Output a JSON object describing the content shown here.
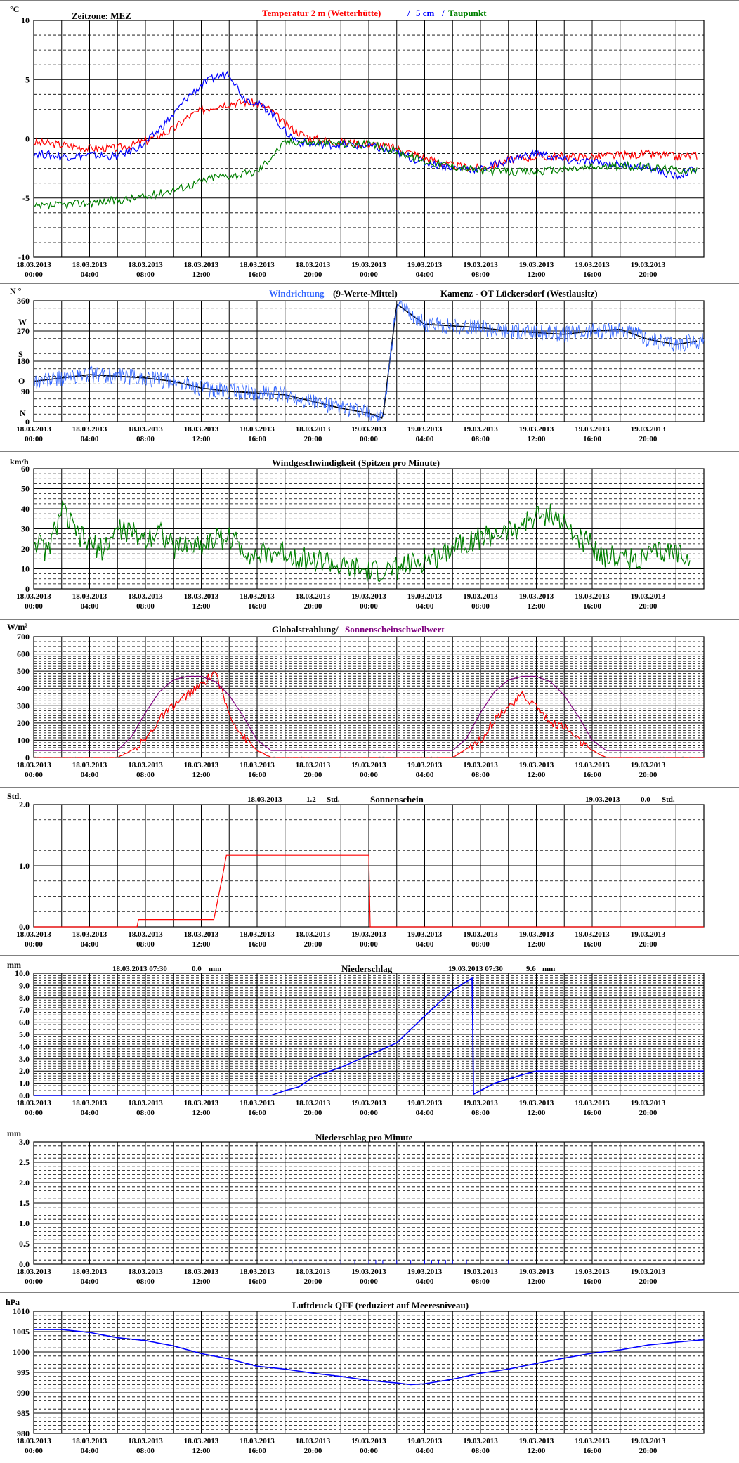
{
  "x_labels": [
    [
      "18.03.2013",
      "00:00"
    ],
    [
      "18.03.2013",
      "04:00"
    ],
    [
      "18.03.2013",
      "08:00"
    ],
    [
      "18.03.2013",
      "12:00"
    ],
    [
      "18.03.2013",
      "16:00"
    ],
    [
      "18.03.2013",
      "20:00"
    ],
    [
      "19.03.2013",
      "00:00"
    ],
    [
      "19.03.2013",
      "04:00"
    ],
    [
      "19.03.2013",
      "08:00"
    ],
    [
      "19.03.2013",
      "12:00"
    ],
    [
      "19.03.2013",
      "16:00"
    ],
    [
      "19.03.2013",
      "20:00"
    ]
  ],
  "colors": {
    "red": "#ff0000",
    "blue": "#0000ff",
    "green": "#008000",
    "purple": "#800080",
    "black": "#000000",
    "grid": "#000000"
  },
  "temperature": {
    "unit": "°C",
    "zone": "Zeitzone: MEZ",
    "title_red": "Temperatur 2 m (Wetterhütte)",
    "sep1": "/",
    "title_blue": "5 cm",
    "sep2": "/",
    "title_green": "Taupunkt"
  },
  "wind_dir": {
    "unit": "N °",
    "title_blue": "Windrichtung",
    "title_black": "(9-Werte-Mittel)",
    "station": "Kamenz - OT Lückersdorf (Westlausitz)",
    "compass": [
      "N",
      "W",
      "S",
      "O",
      "N"
    ]
  },
  "wind_speed": {
    "unit": "km/h",
    "title": "Windgeschwindigkeit (Spitzen pro Minute)"
  },
  "radiation": {
    "unit": "W/m²",
    "title_black": "Globalstrahlung/",
    "title_purple": "Sonnenscheinschwellwert"
  },
  "sunshine": {
    "unit": "Std.",
    "day1": "18.03.2013",
    "day1_val": "1.2",
    "day1_unit": "Std.",
    "title": "Sonnenschein",
    "day2": "19.03.2013",
    "day2_val": "0.0",
    "day2_unit": "Std."
  },
  "precip": {
    "unit": "mm",
    "left_time": "18.03.2013 07:30",
    "left_val": "0.0",
    "left_unit": "mm",
    "title": "Niederschlag",
    "right_time": "19.03.2013 07:30",
    "right_val": "9.6",
    "right_unit": "mm"
  },
  "precip_min": {
    "unit": "mm",
    "title": "Niederschlag pro Minute"
  },
  "pressure": {
    "unit": "hPa",
    "title": "Luftdruck QFF (reduziert auf Meeresniveau)"
  },
  "chart_data": [
    {
      "type": "line",
      "title": "Temperatur 2 m (Wetterhütte) / 5 cm / Taupunkt",
      "ylabel": "°C",
      "ylim": [
        -10,
        10
      ],
      "yticks": [
        "10",
        "5",
        "0",
        "-5",
        "-10"
      ],
      "x_hours": [
        0,
        2,
        4,
        6,
        8,
        10,
        11,
        12,
        13,
        14,
        15,
        16,
        17,
        18,
        19,
        20,
        22,
        24,
        26,
        28,
        30,
        32,
        34,
        36,
        38,
        40,
        42,
        44,
        46,
        47.5
      ],
      "series": [
        {
          "name": "Temperatur 2 m (Wetterhütte)",
          "color": "#ff0000",
          "values": [
            -0.3,
            -0.5,
            -0.8,
            -0.8,
            -0.2,
            0.8,
            1.8,
            2.4,
            2.8,
            3.0,
            3.1,
            3.0,
            2.4,
            1.2,
            0.5,
            0.0,
            -0.3,
            -0.4,
            -0.8,
            -1.6,
            -2.3,
            -2.5,
            -1.8,
            -1.5,
            -1.5,
            -1.5,
            -1.4,
            -1.3,
            -1.5,
            -1.4
          ]
        },
        {
          "name": "5 cm",
          "color": "#0000ff",
          "values": [
            -1.2,
            -1.5,
            -1.4,
            -1.5,
            -0.4,
            2.0,
            3.5,
            4.5,
            5.2,
            5.6,
            3.5,
            3.0,
            2.2,
            0.6,
            -0.3,
            -0.5,
            -0.5,
            -0.6,
            -1.2,
            -2.0,
            -2.4,
            -2.6,
            -1.8,
            -1.2,
            -1.8,
            -2.0,
            -2.2,
            -2.4,
            -3.2,
            -2.5
          ]
        },
        {
          "name": "Taupunkt",
          "color": "#008000",
          "values": [
            -5.8,
            -5.6,
            -5.4,
            -5.2,
            -4.9,
            -4.3,
            -4.0,
            -3.6,
            -3.2,
            -3.1,
            -3.0,
            -2.8,
            -1.5,
            -0.3,
            -0.2,
            -0.3,
            -0.4,
            -0.5,
            -1.0,
            -1.9,
            -2.3,
            -2.7,
            -2.8,
            -2.8,
            -2.6,
            -2.4,
            -2.3,
            -2.4,
            -2.6,
            -2.7
          ]
        }
      ]
    },
    {
      "type": "line",
      "title": "Windrichtung (9-Werte-Mittel)",
      "ylabel": "N °",
      "ylim": [
        0,
        360
      ],
      "yticks": [
        "360",
        "270",
        "180",
        "90",
        "0"
      ],
      "x_hours": [
        0,
        2,
        4,
        6,
        8,
        10,
        12,
        14,
        16,
        18,
        20,
        22,
        24,
        25,
        26,
        28,
        30,
        32,
        34,
        36,
        38,
        40,
        42,
        44,
        46,
        47.5
      ],
      "series": [
        {
          "name": "9-Werte-Mittel",
          "color": "#000000",
          "values": [
            120,
            130,
            140,
            135,
            130,
            120,
            100,
            90,
            85,
            80,
            60,
            40,
            25,
            10,
            350,
            290,
            285,
            280,
            270,
            265,
            260,
            270,
            275,
            245,
            230,
            240
          ]
        }
      ]
    },
    {
      "type": "line",
      "title": "Windgeschwindigkeit (Spitzen pro Minute)",
      "ylabel": "km/h",
      "ylim": [
        0,
        60
      ],
      "yticks": [
        "60",
        "50",
        "40",
        "30",
        "20",
        "10",
        "0"
      ],
      "x_hours": [
        0,
        1,
        2,
        3,
        4,
        5,
        6,
        7,
        8,
        9,
        10,
        11,
        12,
        13,
        14,
        15,
        16,
        17,
        18,
        19,
        20,
        21,
        22,
        23,
        24,
        25,
        26,
        27,
        28,
        29,
        30,
        31,
        32,
        33,
        34,
        35,
        36,
        37,
        38,
        39,
        40,
        41,
        42,
        43,
        44,
        45,
        46,
        47
      ],
      "series": [
        {
          "name": "Windgeschwindigkeit",
          "color": "#008000",
          "values": [
            25,
            18,
            40,
            28,
            22,
            20,
            30,
            28,
            25,
            30,
            20,
            22,
            22,
            25,
            26,
            20,
            16,
            18,
            18,
            16,
            14,
            14,
            10,
            10,
            8,
            9,
            10,
            12,
            14,
            16,
            22,
            24,
            25,
            28,
            28,
            32,
            36,
            38,
            32,
            25,
            22,
            16,
            16,
            15,
            16,
            18,
            18,
            17
          ]
        }
      ]
    },
    {
      "type": "line",
      "title": "Globalstrahlung/ Sonnenscheinschwellwert",
      "ylabel": "W/m²",
      "ylim": [
        0,
        700
      ],
      "yticks": [
        "700",
        "600",
        "500",
        "400",
        "300",
        "200",
        "100",
        "0"
      ],
      "x_hours": [
        0,
        6,
        7,
        8,
        9,
        10,
        11,
        12,
        13,
        14,
        15,
        16,
        17,
        18,
        30,
        31,
        32,
        33,
        34,
        35,
        36,
        37,
        38,
        39,
        40,
        41,
        42,
        48
      ],
      "series": [
        {
          "name": "Globalstrahlung",
          "color": "#ff0000",
          "values": [
            0,
            0,
            40,
            100,
            220,
            300,
            360,
            420,
            500,
            250,
            120,
            40,
            0,
            0,
            0,
            50,
            100,
            220,
            300,
            360,
            300,
            200,
            180,
            100,
            40,
            0,
            0,
            0
          ]
        },
        {
          "name": "Sonnenscheinschwellwert",
          "color": "#800080",
          "values": [
            40,
            40,
            120,
            260,
            380,
            450,
            470,
            470,
            440,
            360,
            240,
            100,
            40,
            40,
            40,
            110,
            260,
            380,
            450,
            470,
            470,
            440,
            360,
            240,
            100,
            40,
            40,
            40
          ]
        }
      ]
    },
    {
      "type": "line",
      "title": "Sonnenschein",
      "ylabel": "Std.",
      "ylim": [
        0,
        2
      ],
      "yticks": [
        "2.0",
        "1.0",
        "0.0"
      ],
      "x_hours": [
        0,
        7.4,
        7.5,
        12.9,
        13.5,
        13.8,
        24.0,
        24.01,
        48
      ],
      "series": [
        {
          "name": "Sonnenschein",
          "color": "#ff0000",
          "values": [
            0,
            0,
            0.12,
            0.12,
            0.8,
            1.17,
            1.17,
            0,
            0
          ]
        }
      ]
    },
    {
      "type": "line",
      "title": "Niederschlag",
      "ylabel": "mm",
      "ylim": [
        0,
        10
      ],
      "yticks": [
        "10.0",
        "9.0",
        "8.0",
        "7.0",
        "6.0",
        "5.0",
        "4.0",
        "3.0",
        "2.0",
        "1.0",
        "0.0"
      ],
      "x_hours": [
        0,
        17,
        18,
        19,
        20,
        22,
        24,
        26,
        28,
        30,
        31.4,
        31.5,
        33,
        35,
        36,
        48
      ],
      "series": [
        {
          "name": "Niederschlag",
          "color": "#0000ff",
          "values": [
            0,
            0,
            0.4,
            0.7,
            1.5,
            2.3,
            3.3,
            4.3,
            6.5,
            8.6,
            9.6,
            0.1,
            1.0,
            1.7,
            2.0,
            2.0
          ]
        }
      ]
    },
    {
      "type": "bar",
      "title": "Niederschlag pro Minute",
      "ylabel": "mm",
      "ylim": [
        0,
        3
      ],
      "yticks": [
        "3.0",
        "2.5",
        "2.0",
        "1.5",
        "1.0",
        "0.5",
        "0.0"
      ],
      "x_hours": [
        18.5,
        19,
        19.5,
        20,
        21,
        22,
        23,
        24,
        24.5,
        25,
        26,
        27,
        28,
        28.5,
        29,
        29.5,
        30,
        31,
        34
      ],
      "series": [
        {
          "name": "Niederschlag pro Minute",
          "color": "#0000ff",
          "values": [
            0.1,
            0.1,
            0.1,
            0.1,
            0.1,
            0.1,
            0.1,
            0.1,
            0.1,
            0.1,
            0.1,
            0.1,
            0.1,
            0.1,
            0.1,
            0.1,
            0.1,
            0.1,
            0.1
          ]
        }
      ]
    },
    {
      "type": "line",
      "title": "Luftdruck QFF (reduziert auf Meeresniveau)",
      "ylabel": "hPa",
      "ylim": [
        980,
        1010
      ],
      "yticks": [
        "1010",
        "1005",
        "1000",
        "995",
        "990",
        "985",
        "980"
      ],
      "x_hours": [
        0,
        2,
        4,
        6,
        8,
        10,
        12,
        14,
        16,
        18,
        20,
        22,
        24,
        26,
        27,
        28,
        30,
        32,
        34,
        36,
        38,
        40,
        42,
        44,
        46,
        48
      ],
      "series": [
        {
          "name": "Luftdruck QFF",
          "color": "#0000ff",
          "values": [
            1005.5,
            1005.5,
            1004.8,
            1003.5,
            1002.8,
            1001.5,
            999.6,
            998.3,
            996.5,
            995.8,
            994.8,
            994.0,
            993.0,
            992.4,
            992.0,
            992.2,
            993.3,
            994.8,
            995.8,
            997.2,
            998.5,
            999.7,
            1000.5,
            1001.7,
            1002.4,
            1003.0
          ]
        }
      ]
    }
  ]
}
